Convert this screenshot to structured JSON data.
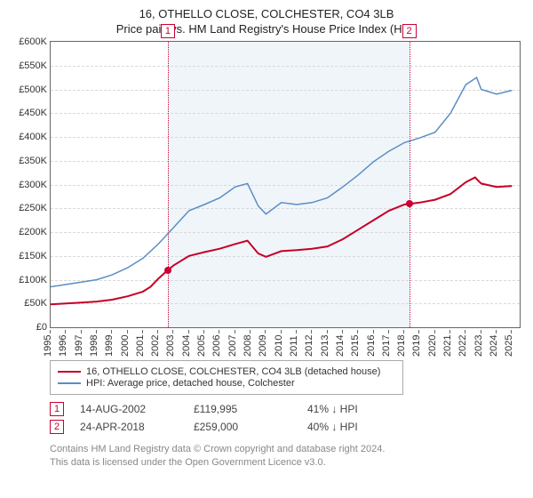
{
  "title": {
    "main": "16, OTHELLO CLOSE, COLCHESTER, CO4 3LB",
    "sub": "Price paid vs. HM Land Registry's House Price Index (HPI)"
  },
  "chart": {
    "type": "line",
    "x_years": [
      1995,
      1996,
      1997,
      1998,
      1999,
      2000,
      2001,
      2002,
      2003,
      2004,
      2005,
      2006,
      2007,
      2008,
      2009,
      2010,
      2011,
      2012,
      2013,
      2014,
      2015,
      2016,
      2017,
      2018,
      2019,
      2020,
      2021,
      2022,
      2023,
      2024,
      2025
    ],
    "x_min": 1995,
    "x_max": 2025.5,
    "y_min": 0,
    "y_max": 600000,
    "y_step": 50000,
    "y_prefix": "£",
    "y_suffix": "K",
    "grid_color": "#d9d9d9",
    "shade_color": "#e3ecf6",
    "shade_from_year": 2002.62,
    "shade_to_year": 2018.31,
    "series": [
      {
        "name": "price_paid",
        "color": "#c60027",
        "width": 2,
        "points": [
          [
            1995,
            48000
          ],
          [
            1996,
            50000
          ],
          [
            1997,
            52000
          ],
          [
            1998,
            54000
          ],
          [
            1999,
            58000
          ],
          [
            2000,
            65000
          ],
          [
            2001,
            75000
          ],
          [
            2001.5,
            85000
          ],
          [
            2002,
            102000
          ],
          [
            2002.62,
            119995
          ],
          [
            2003,
            130000
          ],
          [
            2004,
            150000
          ],
          [
            2005,
            158000
          ],
          [
            2006,
            165000
          ],
          [
            2007,
            175000
          ],
          [
            2007.8,
            182000
          ],
          [
            2008.5,
            155000
          ],
          [
            2009,
            148000
          ],
          [
            2010,
            160000
          ],
          [
            2011,
            162000
          ],
          [
            2012,
            165000
          ],
          [
            2013,
            170000
          ],
          [
            2014,
            185000
          ],
          [
            2015,
            205000
          ],
          [
            2016,
            225000
          ],
          [
            2017,
            245000
          ],
          [
            2018,
            258000
          ],
          [
            2018.31,
            259000
          ],
          [
            2019,
            262000
          ],
          [
            2020,
            268000
          ],
          [
            2021,
            280000
          ],
          [
            2022,
            305000
          ],
          [
            2022.6,
            315000
          ],
          [
            2023,
            302000
          ],
          [
            2024,
            295000
          ],
          [
            2025,
            297000
          ]
        ]
      },
      {
        "name": "hpi",
        "color": "#5b8ec4",
        "width": 1.5,
        "points": [
          [
            1995,
            85000
          ],
          [
            1996,
            90000
          ],
          [
            1997,
            95000
          ],
          [
            1998,
            100000
          ],
          [
            1999,
            110000
          ],
          [
            2000,
            125000
          ],
          [
            2001,
            145000
          ],
          [
            2002,
            175000
          ],
          [
            2003,
            210000
          ],
          [
            2004,
            245000
          ],
          [
            2005,
            258000
          ],
          [
            2006,
            272000
          ],
          [
            2007,
            295000
          ],
          [
            2007.8,
            302000
          ],
          [
            2008.5,
            255000
          ],
          [
            2009,
            238000
          ],
          [
            2010,
            262000
          ],
          [
            2011,
            258000
          ],
          [
            2012,
            262000
          ],
          [
            2013,
            272000
          ],
          [
            2014,
            295000
          ],
          [
            2015,
            320000
          ],
          [
            2016,
            348000
          ],
          [
            2017,
            370000
          ],
          [
            2018,
            388000
          ],
          [
            2019,
            398000
          ],
          [
            2020,
            410000
          ],
          [
            2021,
            450000
          ],
          [
            2022,
            510000
          ],
          [
            2022.7,
            525000
          ],
          [
            2023,
            500000
          ],
          [
            2024,
            490000
          ],
          [
            2025,
            498000
          ]
        ]
      }
    ],
    "markers": [
      {
        "x": 2002.62,
        "y": 119995
      },
      {
        "x": 2018.31,
        "y": 259000
      }
    ],
    "events": [
      {
        "idx": "1",
        "year": 2002.62
      },
      {
        "idx": "2",
        "year": 2018.31
      }
    ]
  },
  "legend": {
    "rows": [
      {
        "color": "#c60027",
        "label": "16, OTHELLO CLOSE, COLCHESTER, CO4 3LB (detached house)"
      },
      {
        "color": "#5b8ec4",
        "label": "HPI: Average price, detached house, Colchester"
      }
    ]
  },
  "transactions": [
    {
      "idx": "1",
      "date": "14-AUG-2002",
      "price": "£119,995",
      "delta": "41% ↓ HPI"
    },
    {
      "idx": "2",
      "date": "24-APR-2018",
      "price": "£259,000",
      "delta": "40% ↓ HPI"
    }
  ],
  "attribution": {
    "line1": "Contains HM Land Registry data © Crown copyright and database right 2024.",
    "line2": "This data is licensed under the Open Government Licence v3.0."
  }
}
